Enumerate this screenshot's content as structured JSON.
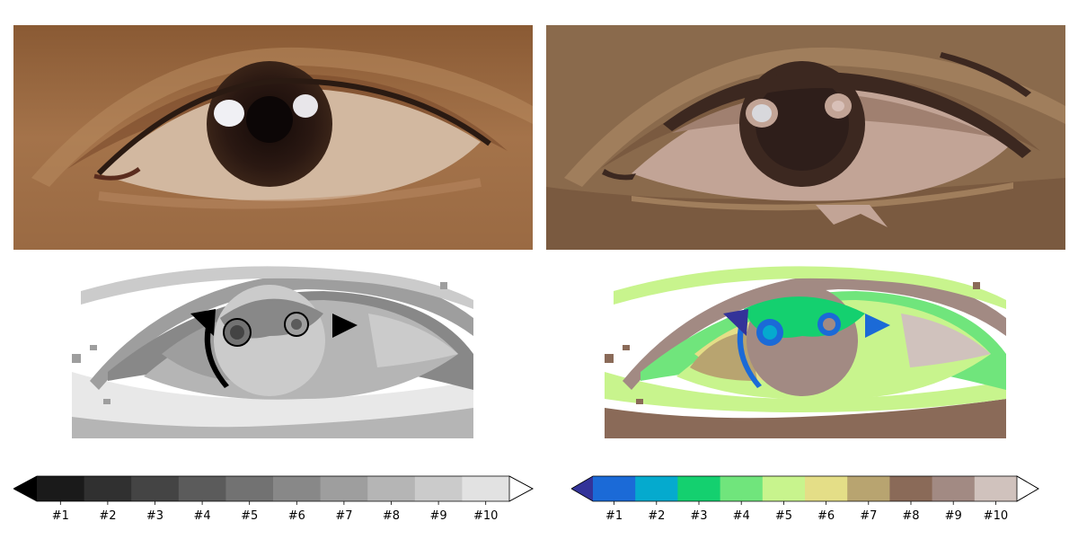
{
  "chart_data": [
    {
      "type": "image",
      "panel": "top-left",
      "content": "original eye photograph (continuous color)"
    },
    {
      "type": "image",
      "panel": "top-right",
      "content": "eye photograph quantized to 10 colors"
    },
    {
      "type": "heatmap",
      "panel": "bottom-left",
      "colormap": "gray",
      "levels": 10,
      "colorbar": {
        "labels": [
          "#1",
          "#2",
          "#3",
          "#4",
          "#5",
          "#6",
          "#7",
          "#8",
          "#9",
          "#10"
        ],
        "colors": [
          "#1a1a1a",
          "#303030",
          "#444444",
          "#5b5b5b",
          "#727272",
          "#888888",
          "#9e9e9e",
          "#b5b5b5",
          "#cbcbcb",
          "#e2e2e2"
        ],
        "under_color": "#000000",
        "over_color": "#ffffff",
        "extend": "both"
      }
    },
    {
      "type": "heatmap",
      "panel": "bottom-right",
      "colormap": "terrain",
      "levels": 10,
      "colorbar": {
        "labels": [
          "#1",
          "#2",
          "#3",
          "#4",
          "#5",
          "#6",
          "#7",
          "#8",
          "#9",
          "#10"
        ],
        "colors": [
          "#1b6ad7",
          "#05aace",
          "#14d06f",
          "#70e57c",
          "#c8f48d",
          "#e4de87",
          "#b8a470",
          "#8a6a58",
          "#a28a83",
          "#d0c2bd"
        ],
        "under_color": "#333399",
        "over_color": "#ffffff",
        "extend": "both"
      }
    }
  ]
}
